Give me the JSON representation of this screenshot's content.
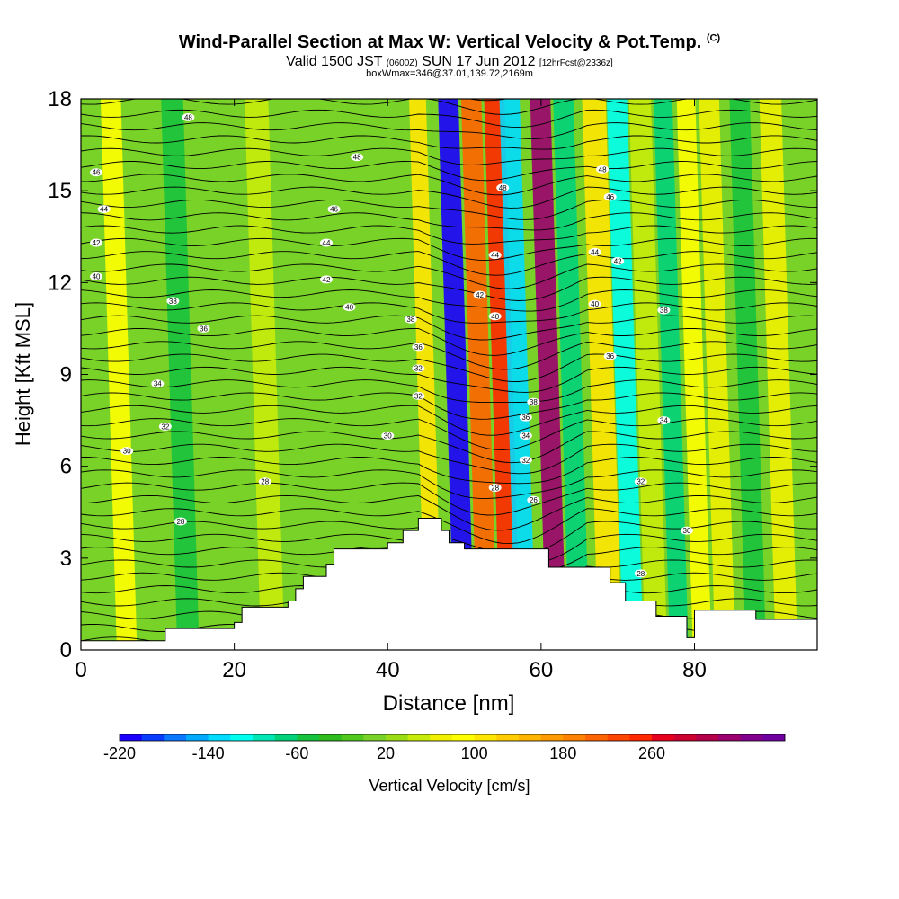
{
  "header": {
    "title": "Wind-Parallel Section at Max W: Vertical Velocity & Pot.Temp.",
    "copyright": "(C)",
    "valid_a": "Valid 1500 JST",
    "valid_z": "(0600Z)",
    "valid_b": "SUN 17 Jun 2012",
    "forecast": "[12hrFcst@2336z]",
    "box": "boxWmax=346@37.01,139.72,2169m"
  },
  "chart_data": {
    "type": "heatmap",
    "title": "Wind-Parallel Section at Max W: Vertical Velocity & Pot.Temp.",
    "xlabel": "Distance [nm]",
    "ylabel": "Height [Kft MSL]",
    "xlim": [
      0,
      96
    ],
    "ylim": [
      0,
      18
    ],
    "x_ticks": [
      0,
      20,
      40,
      60,
      80
    ],
    "y_ticks": [
      0,
      3,
      6,
      9,
      12,
      15,
      18
    ],
    "colorbar": {
      "label": "Vertical Velocity [cm/s]",
      "min": -220,
      "step": 20,
      "levels": 30,
      "tick_labels": [
        "-220",
        "-140",
        "-60",
        "20",
        "100",
        "180",
        "260"
      ],
      "colors": [
        "#1a00ff",
        "#0a3cff",
        "#0a78ff",
        "#00aaff",
        "#00dcff",
        "#00ffee",
        "#00e6b4",
        "#00d27a",
        "#17c23c",
        "#2dbb1e",
        "#50c81e",
        "#78d228",
        "#9bdc14",
        "#c8ec0a",
        "#f0f000",
        "#ffff00",
        "#ffe600",
        "#ffcc00",
        "#ffb400",
        "#ff9b00",
        "#ff8200",
        "#ff6400",
        "#ff4600",
        "#ff2800",
        "#e6001e",
        "#cd0032",
        "#b4004b",
        "#9b006e",
        "#82008c",
        "#6e00a0"
      ]
    },
    "terrain": {
      "units": "Kft MSL",
      "x": [
        0,
        10,
        11,
        20,
        21,
        27,
        28,
        29,
        32,
        33,
        35,
        40,
        42,
        44,
        47,
        48,
        50,
        59,
        61,
        66,
        69,
        71,
        75,
        77,
        79,
        80,
        85,
        88,
        96
      ],
      "y": [
        0.3,
        0.3,
        0.7,
        0.9,
        1.4,
        1.6,
        2.0,
        2.4,
        2.8,
        3.3,
        3.3,
        3.5,
        3.9,
        4.3,
        3.9,
        3.5,
        3.3,
        3.3,
        2.7,
        2.7,
        2.2,
        1.6,
        1.1,
        1.1,
        0.4,
        1.3,
        1.3,
        1.0,
        1.0
      ]
    },
    "velocity_bands": [
      {
        "x": 50,
        "w": 1.2,
        "value": -220
      },
      {
        "x": 53,
        "w": 1.2,
        "value": 200
      },
      {
        "x": 56,
        "w": 1.2,
        "value": 240
      },
      {
        "x": 58,
        "w": 1.2,
        "value": -140
      },
      {
        "x": 62,
        "w": 1.2,
        "value": 320
      },
      {
        "x": 65,
        "w": 1.2,
        "value": -80
      },
      {
        "x": 69,
        "w": 1.4,
        "value": 100
      },
      {
        "x": 72,
        "w": 1.2,
        "value": -120
      },
      {
        "x": 75,
        "w": 1.3,
        "value": 40
      },
      {
        "x": 78,
        "w": 1.1,
        "value": -80
      },
      {
        "x": 81,
        "w": 1.1,
        "value": 80
      },
      {
        "x": 84,
        "w": 1.2,
        "value": 60
      },
      {
        "x": 88,
        "w": 1.2,
        "value": -60
      },
      {
        "x": 92,
        "w": 1.3,
        "value": 60
      },
      {
        "x": 46,
        "w": 1.0,
        "value": 100
      },
      {
        "x": 6,
        "w": 1.2,
        "value": 80
      },
      {
        "x": 14,
        "w": 1.3,
        "value": -60
      },
      {
        "x": 25,
        "w": 1.4,
        "value": 40
      }
    ],
    "contour_labels": [
      {
        "x": 14,
        "y": 17.4,
        "text": "48"
      },
      {
        "x": 2,
        "y": 15.6,
        "text": "46"
      },
      {
        "x": 3,
        "y": 14.4,
        "text": "44"
      },
      {
        "x": 2,
        "y": 13.3,
        "text": "42"
      },
      {
        "x": 2,
        "y": 12.2,
        "text": "40"
      },
      {
        "x": 12,
        "y": 11.4,
        "text": "38"
      },
      {
        "x": 16,
        "y": 10.5,
        "text": "36"
      },
      {
        "x": 10,
        "y": 8.7,
        "text": "34"
      },
      {
        "x": 11,
        "y": 7.3,
        "text": "32"
      },
      {
        "x": 6,
        "y": 6.5,
        "text": "30"
      },
      {
        "x": 13,
        "y": 4.2,
        "text": "28"
      },
      {
        "x": 36,
        "y": 16.1,
        "text": "48"
      },
      {
        "x": 33,
        "y": 14.4,
        "text": "46"
      },
      {
        "x": 32,
        "y": 13.3,
        "text": "44"
      },
      {
        "x": 32,
        "y": 12.1,
        "text": "42"
      },
      {
        "x": 35,
        "y": 11.2,
        "text": "40"
      },
      {
        "x": 43,
        "y": 10.8,
        "text": "38"
      },
      {
        "x": 44,
        "y": 9.9,
        "text": "36"
      },
      {
        "x": 44,
        "y": 9.2,
        "text": "32"
      },
      {
        "x": 44,
        "y": 8.3,
        "text": "32"
      },
      {
        "x": 40,
        "y": 7.0,
        "text": "30"
      },
      {
        "x": 24,
        "y": 5.5,
        "text": "28"
      },
      {
        "x": 55,
        "y": 15.1,
        "text": "48"
      },
      {
        "x": 54,
        "y": 12.9,
        "text": "44"
      },
      {
        "x": 52,
        "y": 11.6,
        "text": "42"
      },
      {
        "x": 54,
        "y": 10.9,
        "text": "40"
      },
      {
        "x": 59,
        "y": 8.1,
        "text": "38"
      },
      {
        "x": 58,
        "y": 7.6,
        "text": "36"
      },
      {
        "x": 58,
        "y": 7.0,
        "text": "34"
      },
      {
        "x": 58,
        "y": 6.2,
        "text": "32"
      },
      {
        "x": 54,
        "y": 5.3,
        "text": "28"
      },
      {
        "x": 59,
        "y": 4.9,
        "text": "26"
      },
      {
        "x": 68,
        "y": 15.7,
        "text": "48"
      },
      {
        "x": 69,
        "y": 14.8,
        "text": "46"
      },
      {
        "x": 67,
        "y": 13.0,
        "text": "44"
      },
      {
        "x": 70,
        "y": 12.7,
        "text": "42"
      },
      {
        "x": 67,
        "y": 11.3,
        "text": "40"
      },
      {
        "x": 76,
        "y": 11.1,
        "text": "38"
      },
      {
        "x": 69,
        "y": 9.6,
        "text": "36"
      },
      {
        "x": 76,
        "y": 7.5,
        "text": "34"
      },
      {
        "x": 73,
        "y": 5.5,
        "text": "32"
      },
      {
        "x": 79,
        "y": 3.9,
        "text": "30"
      },
      {
        "x": 73,
        "y": 2.5,
        "text": "28"
      }
    ]
  }
}
